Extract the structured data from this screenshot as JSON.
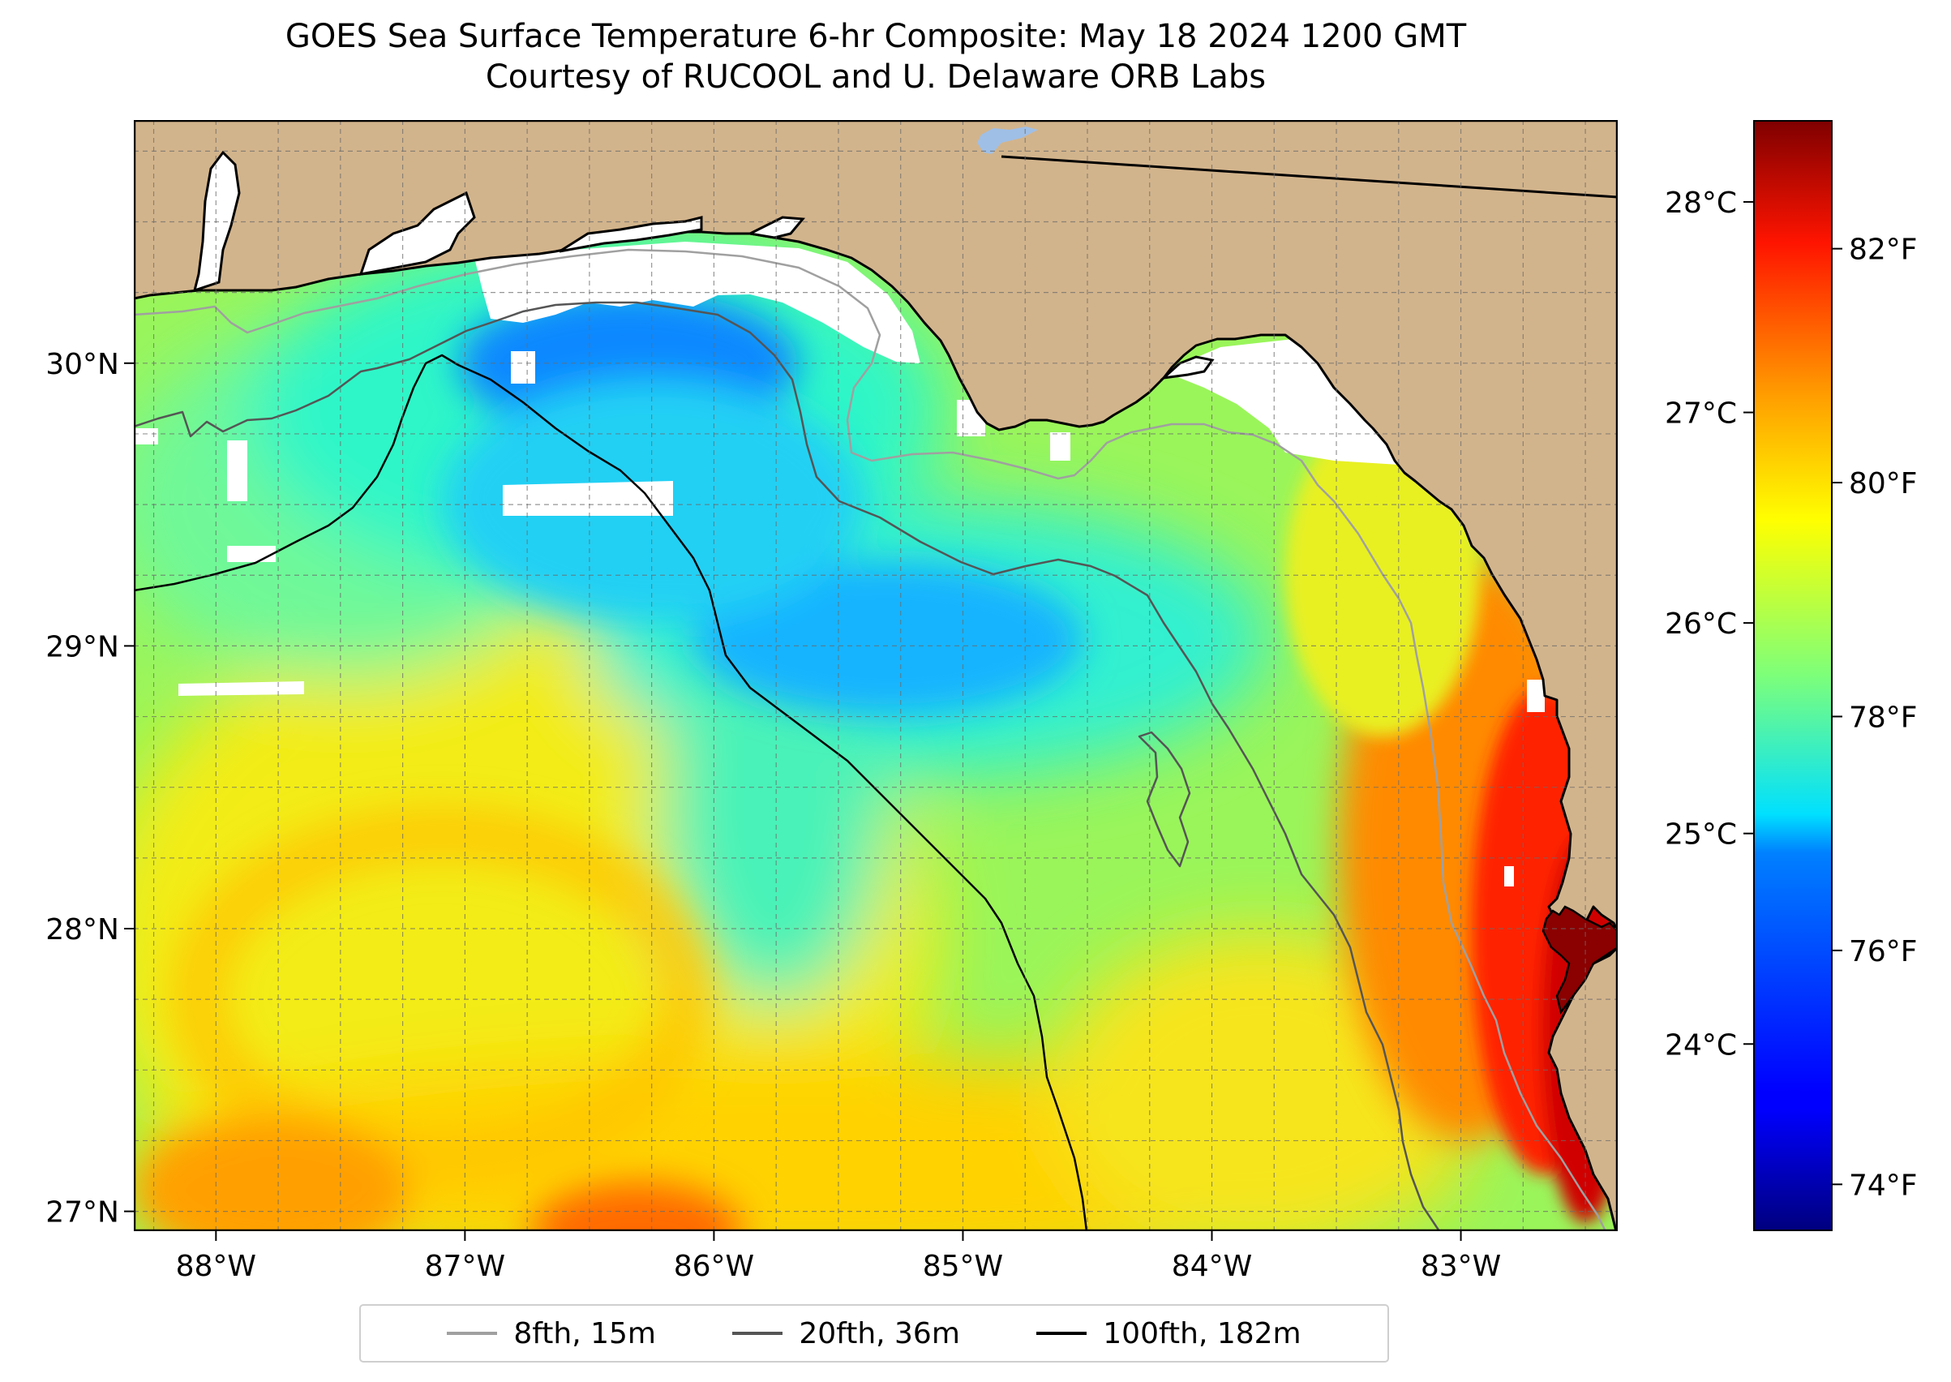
{
  "title": "GOES Sea Surface Temperature 6-hr Composite: May 18 2024 1200 GMT",
  "subtitle": "Courtesy of RUCOOL and U. Delaware ORB Labs",
  "map": {
    "extent": {
      "lon_min": -88.33,
      "lon_max": -82.37,
      "lat_min": 26.93,
      "lat_max": 30.86
    },
    "lon_ticks": [
      {
        "value": -88,
        "label": "88°W"
      },
      {
        "value": -87,
        "label": "87°W"
      },
      {
        "value": -86,
        "label": "86°W"
      },
      {
        "value": -85,
        "label": "85°W"
      },
      {
        "value": -84,
        "label": "84°W"
      },
      {
        "value": -83,
        "label": "83°W"
      }
    ],
    "lat_ticks": [
      {
        "value": 27,
        "label": "27°N"
      },
      {
        "value": 28,
        "label": "28°N"
      },
      {
        "value": 29,
        "label": "29°N"
      },
      {
        "value": 30,
        "label": "30°N"
      }
    ],
    "grid": true,
    "colors": {
      "land": "#d2b48c",
      "no_data": "#ffffff",
      "lake": "#9fbfe6"
    }
  },
  "colorbar": {
    "colormap": "jet",
    "f_ticks": [
      {
        "value": 74,
        "label": "74°F"
      },
      {
        "value": 76,
        "label": "76°F"
      },
      {
        "value": 78,
        "label": "78°F"
      },
      {
        "value": 80,
        "label": "80°F"
      },
      {
        "value": 82,
        "label": "82°F"
      }
    ],
    "c_ticks": [
      {
        "value": 24,
        "label": "24°C"
      },
      {
        "value": 25,
        "label": "25°C"
      },
      {
        "value": 26,
        "label": "26°C"
      },
      {
        "value": 27,
        "label": "27°C"
      },
      {
        "value": 28,
        "label": "28°C"
      }
    ],
    "range_f": [
      73.6,
      83.1
    ]
  },
  "legend": {
    "placement": "bottom-center",
    "items": [
      {
        "label": "8fth, 15m",
        "color": "#a0a0a0"
      },
      {
        "label": "20fth, 36m",
        "color": "#555555"
      },
      {
        "label": "100fth, 182m",
        "color": "#000000"
      }
    ]
  }
}
